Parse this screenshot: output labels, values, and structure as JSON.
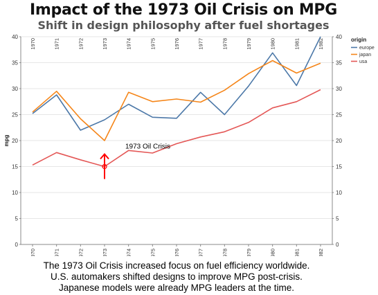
{
  "header": {
    "title": "Impact of the 1973 Oil Crisis on MPG",
    "subtitle": "Shift in design philosophy after fuel shortages"
  },
  "footnote": {
    "line1": "The 1973 Oil Crisis increased focus on fuel efficiency worldwide.",
    "line2": "U.S. automakers shifted designs to improve MPG post-crisis.",
    "line3": "Japanese models were already MPG leaders at the time."
  },
  "colors": {
    "europe": "#4c78a8",
    "japan": "#f58518",
    "usa": "#e45756",
    "annotation": "#ff0000",
    "grid": "#e6e6e6",
    "axis": "#888888"
  },
  "chart_data": {
    "type": "line",
    "x": [
      "1970",
      "1971",
      "1972",
      "1973",
      "1974",
      "1975",
      "1976",
      "1977",
      "1978",
      "1979",
      "1980",
      "1981",
      "1982"
    ],
    "ylabel": "mpg",
    "xlabel": "",
    "ylim": [
      0,
      40
    ],
    "yticks": [
      "0",
      "5",
      "10",
      "15",
      "20",
      "25",
      "30",
      "35",
      "40"
    ],
    "grid": true,
    "legend_title": "origin",
    "legend_position": "right",
    "series": [
      {
        "name": "europe",
        "color": "#4c78a8",
        "values": [
          25.2,
          28.8,
          22.0,
          24.0,
          27.0,
          24.5,
          24.3,
          29.3,
          25.0,
          30.5,
          36.9,
          30.6,
          40.0
        ]
      },
      {
        "name": "japan",
        "color": "#f58518",
        "values": [
          25.5,
          29.5,
          24.2,
          20.0,
          29.3,
          27.5,
          28.0,
          27.4,
          29.7,
          32.9,
          35.4,
          33.0,
          34.9
        ]
      },
      {
        "name": "usa",
        "color": "#e45756",
        "values": [
          15.3,
          17.7,
          16.3,
          15.0,
          18.1,
          17.6,
          19.4,
          20.7,
          21.7,
          23.5,
          26.3,
          27.5,
          29.8
        ]
      }
    ],
    "annotation": {
      "label": "1973 Oil Crisis",
      "x": "1973",
      "y": 15.0
    }
  }
}
